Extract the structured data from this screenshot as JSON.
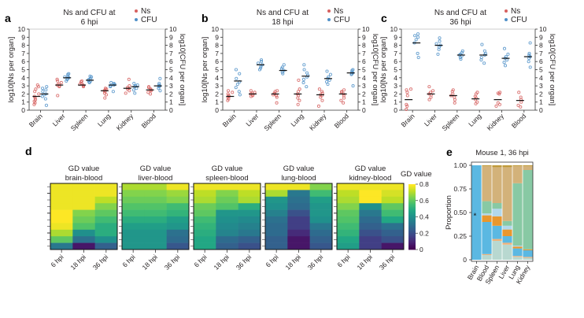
{
  "chart_data": [
    {
      "panel": "a",
      "type": "scatter",
      "title_line1": "Ns and CFU at",
      "title_line2": "6 hpi",
      "legend": [
        {
          "name": "Ns",
          "color": "#d6605f"
        },
        {
          "name": "CFU",
          "color": "#4f90c8"
        }
      ],
      "legend_placement": "top-right",
      "ylabel_left": "log10[Ns per organ]",
      "ylabel_right": "log10[CFU per organ]",
      "ylim": [
        0,
        10
      ],
      "yticks": [
        "0",
        "1",
        "2",
        "3",
        "4",
        "5",
        "6",
        "7",
        "8",
        "9",
        "10"
      ],
      "categories": [
        "Brain",
        "Liver",
        "Spleen",
        "Lung",
        "Kidney",
        "Blood"
      ],
      "series": [
        {
          "name": "Ns",
          "medians": [
            1.7,
            3.1,
            3.1,
            2.4,
            2.7,
            2.5
          ],
          "points": [
            [
              0.7,
              0.9,
              1.1,
              1.3,
              1.5,
              1.7,
              2.0,
              2.3,
              2.6,
              2.9,
              3.1
            ],
            [
              1.8,
              2.9,
              3.0,
              3.1,
              3.2,
              3.4,
              3.6,
              3.8
            ],
            [
              2.9,
              3.0,
              3.1,
              3.2,
              3.3,
              3.5,
              3.6
            ],
            [
              1.5,
              1.9,
              2.1,
              2.3,
              2.4,
              2.5,
              2.6,
              2.7
            ],
            [
              2.1,
              2.4,
              2.6,
              2.7,
              2.8,
              3.0,
              3.8
            ],
            [
              2.0,
              2.2,
              2.4,
              2.5,
              2.6,
              2.8,
              2.9
            ]
          ]
        },
        {
          "name": "CFU",
          "medians": [
            2.0,
            4.0,
            3.7,
            3.1,
            2.9,
            3.0
          ],
          "points": [
            [
              0.6,
              1.4,
              1.7,
              1.9,
              2.0,
              2.3,
              2.5,
              2.7,
              2.9
            ],
            [
              3.6,
              3.8,
              3.9,
              4.0,
              4.1,
              4.2,
              4.4,
              4.5
            ],
            [
              3.4,
              3.5,
              3.6,
              3.7,
              3.8,
              3.9,
              4.1,
              4.2
            ],
            [
              2.3,
              2.9,
              3.0,
              3.1,
              3.2,
              3.3,
              3.4
            ],
            [
              2.1,
              2.5,
              2.7,
              2.9,
              3.0,
              3.1,
              3.3
            ],
            [
              2.4,
              2.7,
              2.9,
              3.0,
              3.1,
              3.3,
              3.9
            ]
          ]
        }
      ]
    },
    {
      "panel": "b",
      "type": "scatter",
      "title_line1": "Ns and CFU at",
      "title_line2": "18 hpi",
      "legend": [
        {
          "name": "Ns",
          "color": "#d6605f"
        },
        {
          "name": "CFU",
          "color": "#4f90c8"
        }
      ],
      "legend_placement": "top-right",
      "ylabel_left": "log10[Ns per organ]",
      "ylabel_right": "log10[CFU per organ]",
      "ylim": [
        0,
        10
      ],
      "yticks": [
        "0",
        "1",
        "2",
        "3",
        "4",
        "5",
        "6",
        "7",
        "8",
        "9",
        "10"
      ],
      "categories": [
        "Brain",
        "Liver",
        "Spleen",
        "Lung",
        "Kidney",
        "Blood"
      ],
      "series": [
        {
          "name": "Ns",
          "medians": [
            1.7,
            2.0,
            2.0,
            2.0,
            1.9,
            2.0
          ],
          "points": [
            [
              1.2,
              1.4,
              1.6,
              1.7,
              1.8,
              2.0,
              2.2,
              2.4
            ],
            [
              1.7,
              1.8,
              1.9,
              2.0,
              2.1,
              2.2,
              2.4
            ],
            [
              0.9,
              1.6,
              1.8,
              1.9,
              2.0,
              2.1,
              2.3,
              2.4
            ],
            [
              0.7,
              1.2,
              1.5,
              1.8,
              2.0,
              2.3,
              2.6,
              3.7
            ],
            [
              0.5,
              1.2,
              1.6,
              1.8,
              1.9,
              2.1,
              2.3,
              2.6
            ],
            [
              0.9,
              1.2,
              1.5,
              1.8,
              2.0,
              2.2,
              2.3,
              2.5
            ]
          ]
        },
        {
          "name": "CFU",
          "medians": [
            3.6,
            5.6,
            4.9,
            4.2,
            3.9,
            4.6
          ],
          "points": [
            [
              1.9,
              2.3,
              2.8,
              3.2,
              3.5,
              3.9,
              4.5,
              5.0
            ],
            [
              5.0,
              5.2,
              5.4,
              5.6,
              5.8,
              6.0,
              6.2
            ],
            [
              4.5,
              4.7,
              4.9,
              5.1,
              5.3,
              5.6
            ],
            [
              2.9,
              3.4,
              3.8,
              4.1,
              4.3,
              4.6,
              5.0,
              5.6
            ],
            [
              3.2,
              3.5,
              3.7,
              3.9,
              4.1,
              4.4,
              4.8
            ],
            [
              3.0,
              4.4,
              4.5,
              4.6,
              4.7,
              4.9,
              5.0
            ]
          ]
        }
      ]
    },
    {
      "panel": "c",
      "type": "scatter",
      "title_line1": "Ns and CFU at",
      "title_line2": "36 hpi",
      "legend": [
        {
          "name": "Ns",
          "color": "#d6605f"
        },
        {
          "name": "CFU",
          "color": "#4f90c8"
        }
      ],
      "legend_placement": "top-right",
      "ylabel_left": "log10[Ns per organ]",
      "ylabel_right": "log10[CFU per organ]",
      "ylim": [
        0,
        10
      ],
      "yticks": [
        "0",
        "1",
        "2",
        "3",
        "4",
        "5",
        "6",
        "7",
        "8",
        "9",
        "10"
      ],
      "categories": [
        "Brain",
        "Liver",
        "Spleen",
        "Lung",
        "Kidney",
        "Blood"
      ],
      "series": [
        {
          "name": "Ns",
          "medians": [
            1.3,
            2.0,
            1.8,
            1.4,
            1.3,
            1.2
          ],
          "points": [
            [
              0.1,
              0.5,
              0.7,
              1.8,
              2.2,
              2.5,
              2.6
            ],
            [
              1.3,
              1.6,
              1.9,
              2.0,
              2.2,
              2.4,
              2.9
            ],
            [
              0.9,
              1.3,
              1.6,
              1.8,
              2.0,
              2.3,
              2.5
            ],
            [
              0.8,
              1.0,
              1.3,
              1.5,
              1.7,
              2.0,
              2.2
            ],
            [
              0.5,
              0.7,
              0.9,
              2.0,
              2.1,
              2.2
            ],
            [
              0.4,
              0.6,
              1.0,
              1.3,
              1.6,
              2.2
            ]
          ]
        },
        {
          "name": "CFU",
          "medians": [
            8.3,
            8.0,
            6.8,
            6.8,
            6.4,
            6.6
          ],
          "points": [
            [
              6.5,
              7.0,
              8.3,
              8.7,
              9.0,
              9.2,
              9.4
            ],
            [
              6.9,
              7.5,
              7.8,
              8.0,
              8.2,
              8.5,
              8.9
            ],
            [
              6.3,
              6.5,
              6.7,
              6.8,
              6.9,
              7.1,
              7.3
            ],
            [
              5.8,
              6.2,
              6.5,
              6.8,
              7.0,
              7.3,
              8.1
            ],
            [
              5.5,
              5.9,
              6.2,
              6.4,
              6.6,
              6.9,
              7.6
            ],
            [
              5.3,
              6.0,
              6.4,
              6.6,
              6.8,
              7.0,
              8.3
            ]
          ]
        }
      ]
    },
    {
      "panel": "d",
      "type": "heatmap",
      "colorbar_label": "GD value",
      "colorbar_ticks": [
        "0",
        "0.2",
        "0.4",
        "0.6",
        "0.8"
      ],
      "colorbar_range": [
        0,
        0.8
      ],
      "colormap": "viridis",
      "xticks": [
        "6 hpi",
        "18 hpi",
        "36 hpi"
      ],
      "rows": 10,
      "maps": [
        {
          "title_line1": "GD value",
          "title_line2": "brain-blood",
          "values": [
            [
              0.78,
              0.78,
              0.78
            ],
            [
              0.78,
              0.78,
              0.78
            ],
            [
              0.78,
              0.78,
              0.72
            ],
            [
              0.78,
              0.78,
              0.65
            ],
            [
              0.8,
              0.65,
              0.6
            ],
            [
              0.8,
              0.62,
              0.55
            ],
            [
              0.78,
              0.58,
              0.5
            ],
            [
              0.7,
              0.4,
              0.5
            ],
            [
              0.6,
              0.3,
              0.4
            ],
            [
              0.32,
              0.05,
              0.25
            ]
          ]
        },
        {
          "title_line1": "GD value",
          "title_line2": "liver-blood",
          "values": [
            [
              0.7,
              0.7,
              0.78
            ],
            [
              0.65,
              0.65,
              0.68
            ],
            [
              0.62,
              0.62,
              0.65
            ],
            [
              0.58,
              0.58,
              0.55
            ],
            [
              0.55,
              0.55,
              0.52
            ],
            [
              0.5,
              0.5,
              0.45
            ],
            [
              0.45,
              0.45,
              0.42
            ],
            [
              0.42,
              0.42,
              0.3
            ],
            [
              0.42,
              0.42,
              0.28
            ],
            [
              0.42,
              0.42,
              0.22
            ]
          ]
        },
        {
          "title_line1": "GD value",
          "title_line2": "spleen-blood",
          "values": [
            [
              0.78,
              0.78,
              0.78
            ],
            [
              0.72,
              0.65,
              0.72
            ],
            [
              0.7,
              0.62,
              0.7
            ],
            [
              0.62,
              0.58,
              0.5
            ],
            [
              0.6,
              0.42,
              0.42
            ],
            [
              0.55,
              0.4,
              0.38
            ],
            [
              0.52,
              0.38,
              0.35
            ],
            [
              0.5,
              0.36,
              0.32
            ],
            [
              0.48,
              0.28,
              0.25
            ],
            [
              0.48,
              0.25,
              0.2
            ]
          ]
        },
        {
          "title_line1": "GD value",
          "title_line2": "lung-blood",
          "values": [
            [
              0.78,
              0.78,
              0.65
            ],
            [
              0.7,
              0.32,
              0.55
            ],
            [
              0.42,
              0.3,
              0.45
            ],
            [
              0.4,
              0.28,
              0.42
            ],
            [
              0.35,
              0.2,
              0.42
            ],
            [
              0.3,
              0.15,
              0.4
            ],
            [
              0.28,
              0.15,
              0.32
            ],
            [
              0.28,
              0.1,
              0.28
            ],
            [
              0.25,
              0.05,
              0.25
            ],
            [
              0.25,
              0.05,
              0.22
            ]
          ]
        },
        {
          "title_line1": "GD value",
          "title_line2": "kidney-blood",
          "values": [
            [
              0.78,
              0.78,
              0.78
            ],
            [
              0.72,
              0.8,
              0.75
            ],
            [
              0.7,
              0.8,
              0.72
            ],
            [
              0.65,
              0.4,
              0.6
            ],
            [
              0.6,
              0.32,
              0.55
            ],
            [
              0.58,
              0.28,
              0.48
            ],
            [
              0.55,
              0.25,
              0.3
            ],
            [
              0.52,
              0.2,
              0.25
            ],
            [
              0.48,
              0.15,
              0.2
            ],
            [
              0.45,
              0.15,
              0.05
            ]
          ]
        }
      ]
    },
    {
      "panel": "e",
      "type": "bar",
      "stacked": true,
      "title": "Mouse 1, 36 hpi",
      "ylabel": "Proportion",
      "ylim": [
        0,
        1
      ],
      "yticks": [
        "0",
        "0.25",
        "0.50",
        "0.75",
        "1.00"
      ],
      "categories": [
        "Brain",
        "Blood",
        "Spleen",
        "Liver",
        "Lung",
        "Kidney"
      ],
      "annotation": {
        "text": "*",
        "category": "Brain",
        "y": 0.47
      },
      "segment_colors": [
        "#b8d8d0",
        "#f0b27a",
        "#5bb8e2",
        "#e8972e",
        "#b2d8ec",
        "#88c9a4",
        "#d3b27a",
        "#bf9a3a"
      ],
      "stacks": [
        [
          0.0,
          0.0,
          1.0,
          0.0,
          0.0,
          0.0,
          0.0,
          0.0
        ],
        [
          0.05,
          0.01,
          0.34,
          0.07,
          0.02,
          0.13,
          0.37,
          0.01
        ],
        [
          0.2,
          0.02,
          0.14,
          0.1,
          0.08,
          0.06,
          0.38,
          0.02
        ],
        [
          0.16,
          0.02,
          0.07,
          0.07,
          0.04,
          0.05,
          0.57,
          0.02
        ],
        [
          0.03,
          0.01,
          0.08,
          0.02,
          0.01,
          0.66,
          0.18,
          0.01
        ],
        [
          0.02,
          0.01,
          0.07,
          0.01,
          0.0,
          0.84,
          0.04,
          0.01
        ]
      ]
    }
  ],
  "panel_labels": [
    "a",
    "b",
    "c",
    "d",
    "e"
  ]
}
